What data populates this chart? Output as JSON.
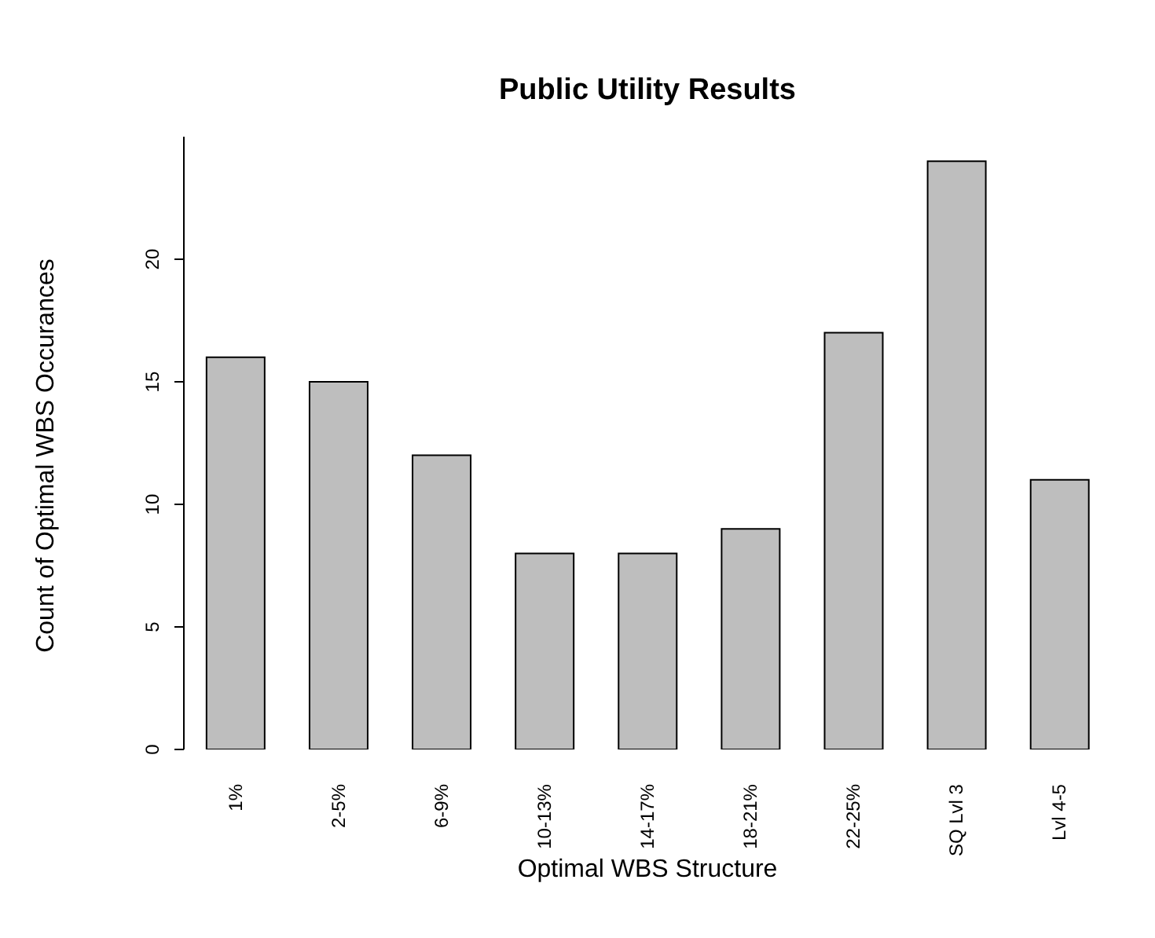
{
  "chart_data": {
    "type": "bar",
    "title": "Public Utility Results",
    "xlabel": "Optimal WBS Structure",
    "ylabel": "Count of Optimal WBS Occurances",
    "categories": [
      "1%",
      "2-5%",
      "6-9%",
      "10-13%",
      "14-17%",
      "18-21%",
      "22-25%",
      "SQ Lvl 3",
      "Lvl 4-5"
    ],
    "values": [
      16,
      15,
      12,
      8,
      8,
      9,
      17,
      24,
      11
    ],
    "color": "#bebebe",
    "ylim": [
      0,
      25
    ],
    "yticks": [
      0,
      5,
      10,
      15,
      20
    ],
    "grid": false
  }
}
